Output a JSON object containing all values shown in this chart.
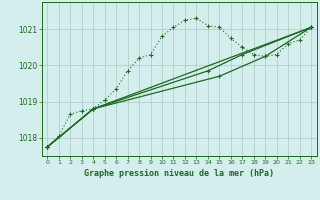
{
  "background_color": "#d4eeee",
  "grid_color": "#b8c8c8",
  "line_color": "#1a6b1a",
  "xlabel": "Graphe pression niveau de la mer (hPa)",
  "xlabel_color": "#1a6b1a",
  "ylim": [
    1017.5,
    1021.75
  ],
  "xlim": [
    -0.5,
    23.5
  ],
  "yticks": [
    1018,
    1019,
    1020,
    1021
  ],
  "xticks": [
    0,
    1,
    2,
    3,
    4,
    5,
    6,
    7,
    8,
    9,
    10,
    11,
    12,
    13,
    14,
    15,
    16,
    17,
    18,
    19,
    20,
    21,
    22,
    23
  ],
  "dotted_line": [
    [
      0,
      1017.75
    ],
    [
      1,
      1018.05
    ],
    [
      2,
      1018.65
    ],
    [
      3,
      1018.75
    ],
    [
      4,
      1018.8
    ],
    [
      5,
      1019.05
    ],
    [
      6,
      1019.35
    ],
    [
      7,
      1019.85
    ],
    [
      8,
      1020.2
    ],
    [
      9,
      1020.3
    ],
    [
      10,
      1020.8
    ],
    [
      11,
      1021.05
    ],
    [
      12,
      1021.25
    ],
    [
      13,
      1021.3
    ],
    [
      14,
      1021.1
    ],
    [
      15,
      1021.05
    ],
    [
      16,
      1020.75
    ],
    [
      17,
      1020.5
    ],
    [
      18,
      1020.3
    ],
    [
      19,
      1020.25
    ],
    [
      20,
      1020.3
    ],
    [
      21,
      1020.6
    ],
    [
      22,
      1020.7
    ],
    [
      23,
      1021.05
    ]
  ],
  "solid_line1": [
    [
      0,
      1017.75
    ],
    [
      4,
      1018.8
    ],
    [
      23,
      1021.05
    ]
  ],
  "solid_line2": [
    [
      0,
      1017.75
    ],
    [
      4,
      1018.8
    ],
    [
      15,
      1019.7
    ],
    [
      19,
      1020.25
    ],
    [
      23,
      1021.05
    ]
  ],
  "solid_line3": [
    [
      0,
      1017.75
    ],
    [
      4,
      1018.8
    ],
    [
      14,
      1019.85
    ],
    [
      17,
      1020.3
    ],
    [
      23,
      1021.05
    ]
  ]
}
